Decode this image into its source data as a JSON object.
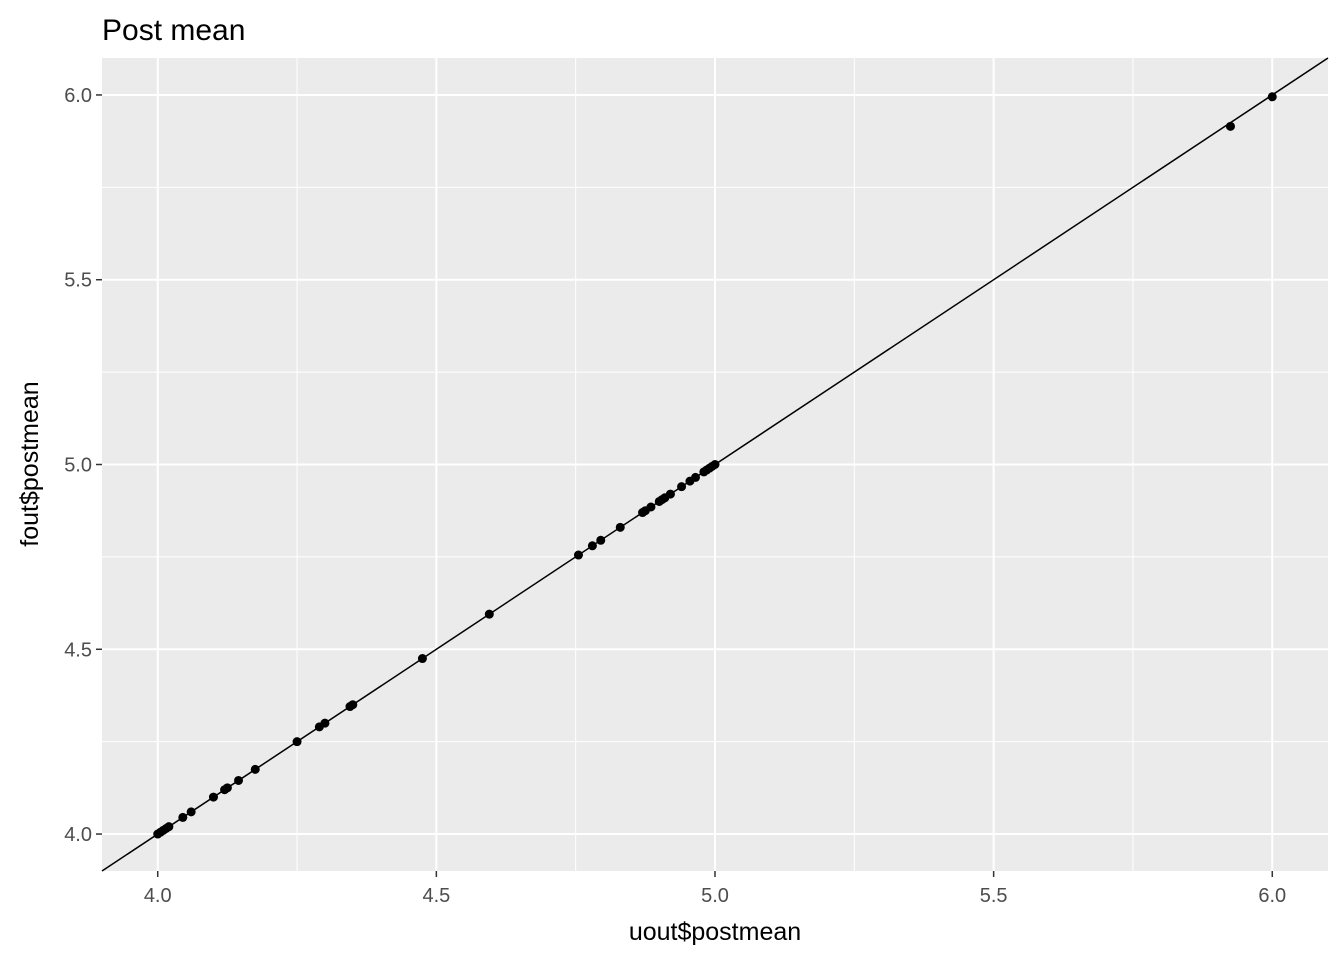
{
  "chart_data": {
    "type": "scatter",
    "title": "Post mean",
    "xlabel": "uout$postmean",
    "ylabel": "fout$postmean",
    "xlim": [
      3.9,
      6.1
    ],
    "ylim": [
      3.9,
      6.1
    ],
    "x_ticks": [
      "4.0",
      "4.5",
      "5.0",
      "5.5",
      "6.0"
    ],
    "y_ticks": [
      "4.0",
      "4.5",
      "5.0",
      "5.5",
      "6.0"
    ],
    "grid": true,
    "reference_line": {
      "slope": 1,
      "intercept": 0
    },
    "background_color": "#ebebeb",
    "grid_color": "#ffffff",
    "point_color": "#000000",
    "series": [
      {
        "x": [
          4.0,
          4.005,
          4.01,
          4.015,
          4.02,
          4.045,
          4.06,
          4.1,
          4.12,
          4.125,
          4.145,
          4.175,
          4.25,
          4.29,
          4.3,
          4.345,
          4.35,
          4.475,
          4.595,
          4.755,
          4.78,
          4.795,
          4.83,
          4.87,
          4.875,
          4.885,
          4.9,
          4.905,
          4.91,
          4.92,
          4.94,
          4.955,
          4.965,
          4.98,
          4.985,
          4.99,
          4.995,
          5.0,
          5.925,
          6.0
        ],
        "y": [
          4.0,
          4.005,
          4.01,
          4.015,
          4.02,
          4.045,
          4.06,
          4.1,
          4.12,
          4.125,
          4.145,
          4.175,
          4.25,
          4.29,
          4.3,
          4.345,
          4.35,
          4.475,
          4.595,
          4.755,
          4.78,
          4.795,
          4.83,
          4.87,
          4.875,
          4.885,
          4.9,
          4.905,
          4.91,
          4.92,
          4.94,
          4.955,
          4.965,
          4.98,
          4.985,
          4.99,
          4.995,
          5.0,
          5.915,
          5.995
        ]
      }
    ]
  }
}
